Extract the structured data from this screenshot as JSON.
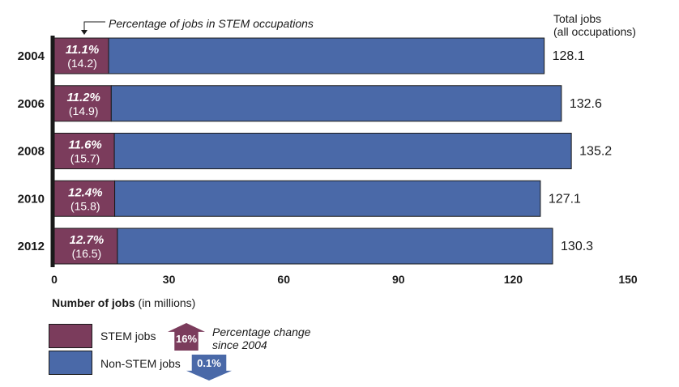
{
  "chart_data": {
    "type": "bar",
    "orientation": "horizontal",
    "stacked": true,
    "categories": [
      "2004",
      "2006",
      "2008",
      "2010",
      "2012"
    ],
    "series": [
      {
        "name": "STEM jobs",
        "values": [
          14.2,
          14.9,
          15.7,
          15.8,
          16.5
        ],
        "color": "#7b3c5c"
      },
      {
        "name": "Non-STEM jobs",
        "values": [
          113.9,
          117.7,
          119.5,
          111.3,
          113.8
        ],
        "color": "#4a69a8"
      }
    ],
    "totals": [
      128.1,
      132.6,
      135.2,
      127.1,
      130.3
    ],
    "stem_percent_labels": [
      "11.1%",
      "11.2%",
      "11.6%",
      "12.4%",
      "12.7%"
    ],
    "stem_value_labels": [
      "(14.2)",
      "(14.9)",
      "(15.7)",
      "(15.8)",
      "(16.5)"
    ],
    "total_labels": [
      "128.1",
      "132.6",
      "135.2",
      "127.1",
      "130.3"
    ],
    "xlim": [
      0,
      150
    ],
    "xticks": [
      "0",
      "30",
      "60",
      "90",
      "120",
      "150"
    ],
    "xlabel_bold": "Number of jobs",
    "xlabel_rest": " (in millions)",
    "grid": false,
    "legend_position": "bottom-left"
  },
  "annotation": "Percentage of jobs in STEM occupations",
  "totals_header": {
    "line1": "Total jobs",
    "line2": "(all occupations)"
  },
  "legend": {
    "stem_label": "STEM jobs",
    "nonstem_label": "Non-STEM jobs"
  },
  "change": {
    "stem_value": "16%",
    "nonstem_value": "0.1%",
    "label_line1": "Percentage change",
    "label_line2": "since 2004",
    "stem_direction": "up",
    "nonstem_direction": "down"
  }
}
